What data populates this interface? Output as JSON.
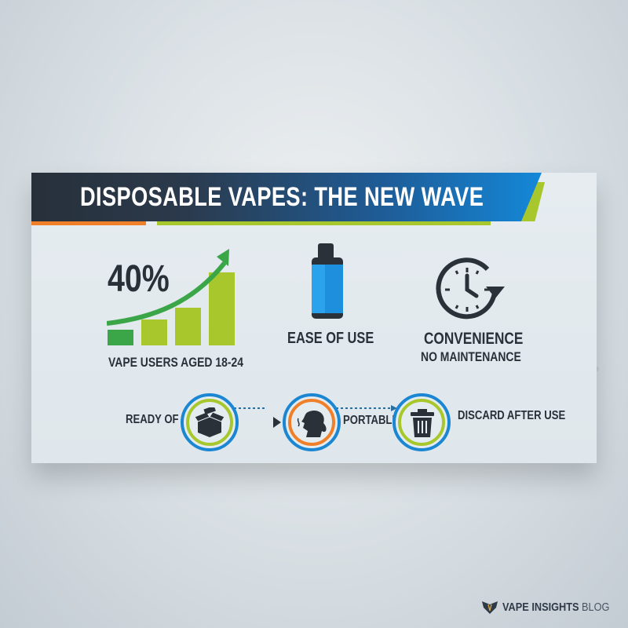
{
  "header": {
    "title": "DISPOSABLE VAPES: THE NEW WAVE"
  },
  "stat": {
    "value": "40%",
    "label": "VAPE USERS AGED 18-24"
  },
  "features": [
    {
      "label": "EASE OF USE"
    },
    {
      "label": "CONVENIENCE",
      "sublabel": "NO MAINTENANCE"
    }
  ],
  "steps": [
    {
      "label": "READY\nOF USE",
      "icon": "open-box-icon"
    },
    {
      "label": "PORTABLE",
      "icon": "person-exhaling-icon"
    },
    {
      "label": "DISCARD\nAFTER USE",
      "icon": "trash-icon"
    }
  ],
  "footer": {
    "brand": "VAPE INSIGHTS",
    "suffix": "BLOG"
  },
  "colors": {
    "dark": "#27303a",
    "blue": "#1488d8",
    "green": "#a8c72c",
    "dark_green": "#3aa648",
    "orange": "#f07f2a"
  }
}
